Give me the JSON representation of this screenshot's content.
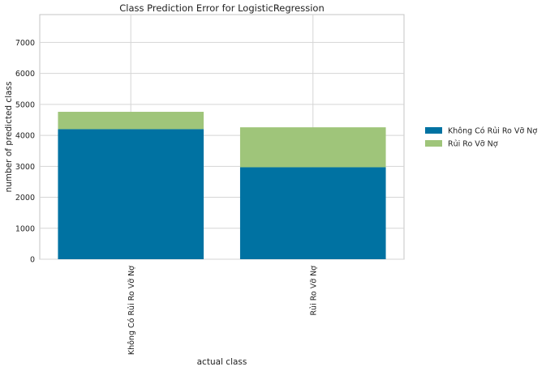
{
  "chart_data": {
    "type": "bar",
    "stacked": true,
    "title": "Class Prediction Error for LogisticRegression",
    "xlabel": "actual class",
    "ylabel": "number of predicted class",
    "categories": [
      "Không Có Rủi Ro Vỡ Nợ",
      "Rủi Ro Vỡ Nợ"
    ],
    "series": [
      {
        "name": "Không Có Rủi Ro Vỡ Nợ",
        "values": [
          4200,
          2970
        ],
        "color": "#0072a2"
      },
      {
        "name": "Rủi Ro Vỡ Nợ",
        "values": [
          560,
          1290
        ],
        "color": "#9fc57a"
      }
    ],
    "ylim": [
      0,
      7900
    ],
    "yticks": [
      0,
      1000,
      2000,
      3000,
      4000,
      5000,
      6000,
      7000
    ],
    "grid": true,
    "legend_position": "right"
  }
}
